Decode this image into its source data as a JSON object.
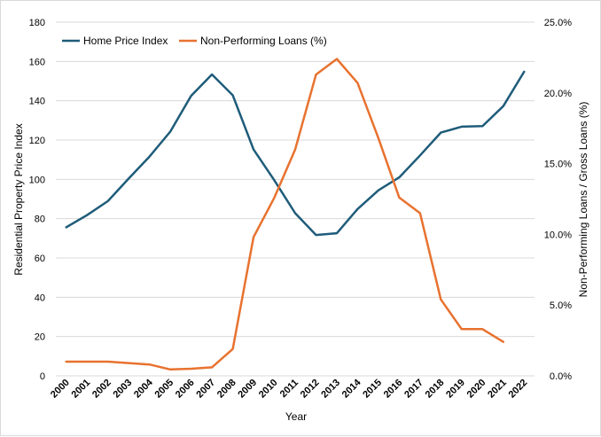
{
  "chart_data": {
    "type": "line",
    "title": "",
    "xlabel": "Year",
    "ylabel": "Residential Property Price Index",
    "y2label": "Non-Performing Loans / Gross Loans (%)",
    "ylim": [
      0,
      180
    ],
    "y2lim": [
      0,
      25
    ],
    "yticks": [
      "0",
      "20",
      "40",
      "60",
      "80",
      "100",
      "120",
      "140",
      "160",
      "180"
    ],
    "y2ticks": [
      "0.0%",
      "5.0%",
      "10.0%",
      "15.0%",
      "20.0%",
      "25.0%"
    ],
    "categories": [
      "2000",
      "2001",
      "2002",
      "2003",
      "2004",
      "2005",
      "2006",
      "2007",
      "2008",
      "2009",
      "2010",
      "2011",
      "2012",
      "2013",
      "2014",
      "2015",
      "2016",
      "2017",
      "2018",
      "2019",
      "2020",
      "2021",
      "2022"
    ],
    "grid": true,
    "legend_position": "top-left",
    "series": [
      {
        "name": "Home Price Index",
        "axis": "left",
        "color": "#1f5c7a",
        "values": [
          75.6,
          81.8,
          88.9,
          100.4,
          111.6,
          124.3,
          142.5,
          153.4,
          142.8,
          115.2,
          99.5,
          82.8,
          71.7,
          72.6,
          84.9,
          94.4,
          101.0,
          112.2,
          123.8,
          126.8,
          127.1,
          137.3,
          154.8
        ]
      },
      {
        "name": "Non-Performing Loans (%)",
        "axis": "right",
        "color": "#e8722f",
        "values": [
          1.0,
          1.0,
          1.0,
          0.9,
          0.8,
          0.45,
          0.5,
          0.6,
          1.9,
          9.8,
          12.6,
          16.0,
          21.3,
          22.4,
          20.7,
          16.8,
          12.6,
          11.5,
          5.4,
          3.3,
          3.3,
          2.4,
          null
        ]
      }
    ]
  }
}
